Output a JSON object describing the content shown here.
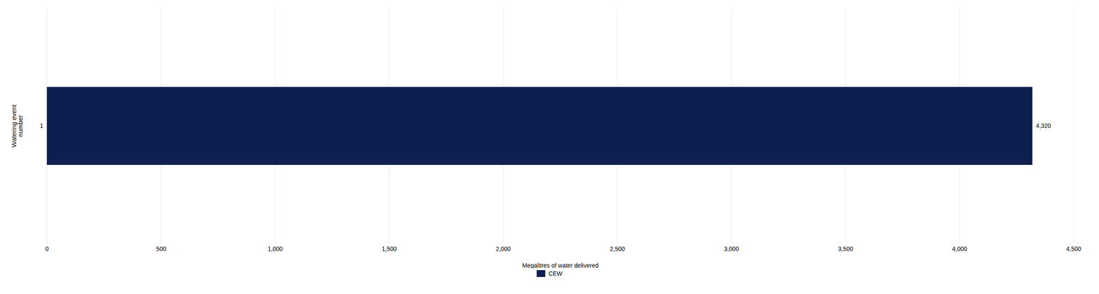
{
  "chart_data": {
    "type": "bar",
    "orientation": "horizontal",
    "categories": [
      "1"
    ],
    "series": [
      {
        "name": "CEW",
        "color": "#0d1f4e",
        "values": [
          4320
        ],
        "value_labels": [
          "4,320"
        ]
      }
    ],
    "data_labels": true,
    "xlabel": "Megalitres of water delivered",
    "ylabel": "Watering event\nnumber",
    "xlim": [
      0,
      4500
    ],
    "xticks": [
      0,
      500,
      {
        "value": 1000,
        "label": "1,000"
      },
      {
        "value": 1500,
        "label": "1,500"
      },
      {
        "value": 2000,
        "label": "2,000"
      },
      {
        "value": 2500,
        "label": "2,500"
      },
      {
        "value": 3000,
        "label": "3,000"
      },
      {
        "value": 3500,
        "label": "3,500"
      },
      {
        "value": 4000,
        "label": "4,000"
      },
      {
        "value": 4500,
        "label": "4,500"
      }
    ],
    "grid": true,
    "legend": "bottom"
  }
}
